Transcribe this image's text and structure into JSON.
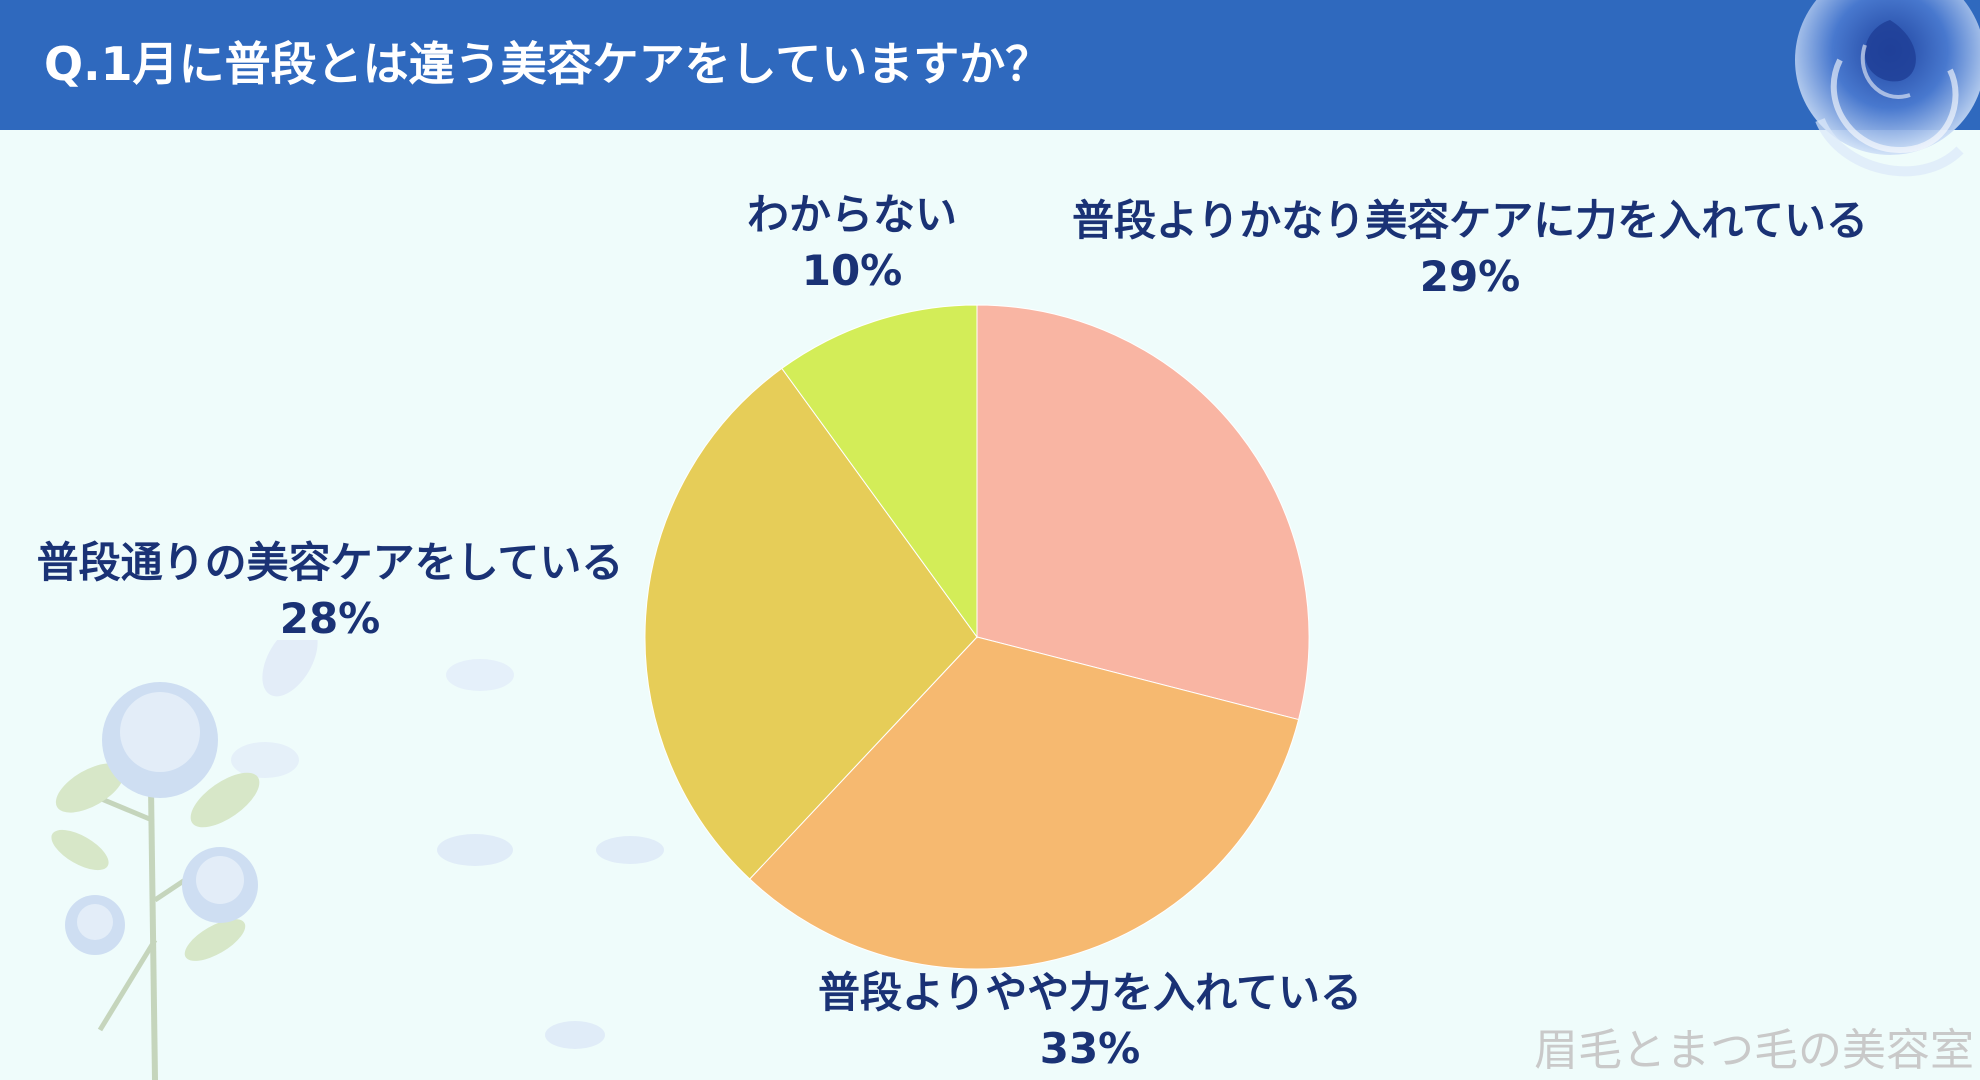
{
  "page": {
    "title": "Q.1月に普段とは違う美容ケアをしていますか？",
    "watermark": "眉毛とまつ毛の美容室"
  },
  "colors": {
    "header_bg": "#2f69be",
    "background": "#effcfb",
    "label_text": "#1a3275"
  },
  "chart_data": {
    "type": "pie",
    "start_angle_deg": 0,
    "direction": "clockwise",
    "slices": [
      {
        "label": "普段よりかなり美容ケアに力を入れている",
        "value": 29,
        "value_label": "29%",
        "color": "#f9b5a3"
      },
      {
        "label": "普段よりやや力を入れている",
        "value": 33,
        "value_label": "33%",
        "color": "#f6b970"
      },
      {
        "label": "普段通りの美容ケアをしている",
        "value": 28,
        "value_label": "28%",
        "color": "#e6cd58"
      },
      {
        "label": "わからない",
        "value": 10,
        "value_label": "10%",
        "color": "#d3ed58"
      }
    ]
  }
}
